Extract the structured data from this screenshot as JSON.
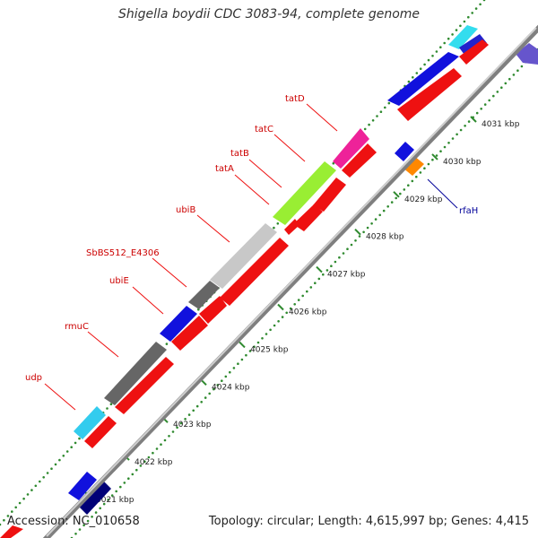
{
  "title": "Shigella boydii CDC 3083-94, complete genome",
  "footer": {
    "accession": "Accession: NC_010658",
    "summary": "Topology: circular; Length: 4,615,997 bp; Genes: 4,415"
  },
  "colors": {
    "backbone": "#7f7f7f",
    "tick_dots": "#2f8a2f",
    "cds_forward": "#ee1111",
    "cds_reverse": "#1111dd",
    "label_forward": "#cc0000",
    "label_reverse": "#000099"
  },
  "ticks": [
    {
      "kbp": 4021,
      "label": "4021 kbp"
    },
    {
      "kbp": 4022,
      "label": "4022 kbp"
    },
    {
      "kbp": 4023,
      "label": "4023 kbp"
    },
    {
      "kbp": 4024,
      "label": "4024 kbp"
    },
    {
      "kbp": 4025,
      "label": "4025 kbp"
    },
    {
      "kbp": 4026,
      "label": "4026 kbp"
    },
    {
      "kbp": 4027,
      "label": "4027 kbp"
    },
    {
      "kbp": 4028,
      "label": "4028 kbp"
    },
    {
      "kbp": 4029,
      "label": "4029 kbp"
    },
    {
      "kbp": 4030,
      "label": "4030 kbp"
    },
    {
      "kbp": 4031,
      "label": "4031 kbp"
    }
  ],
  "gene_labels": [
    {
      "name": "udp",
      "strand": "forward"
    },
    {
      "name": "rmuC",
      "strand": "forward"
    },
    {
      "name": "ubiE",
      "strand": "forward"
    },
    {
      "name": "SbBS512_E4306",
      "strand": "forward"
    },
    {
      "name": "ubiB",
      "strand": "forward"
    },
    {
      "name": "tatA",
      "strand": "forward"
    },
    {
      "name": "tatB",
      "strand": "forward"
    },
    {
      "name": "tatC",
      "strand": "forward"
    },
    {
      "name": "tatD",
      "strand": "forward"
    },
    {
      "name": "rfaH",
      "strand": "reverse"
    }
  ]
}
